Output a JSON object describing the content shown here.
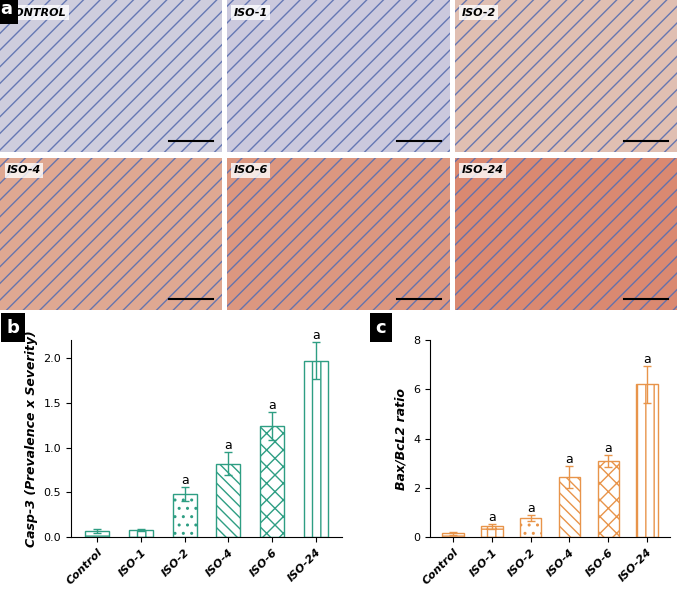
{
  "micrographs": {
    "panel": "a",
    "labels": [
      "CONTROL",
      "ISO-1",
      "ISO-2",
      "ISO-4",
      "ISO-6",
      "ISO-24"
    ]
  },
  "chart_data": [
    {
      "type": "bar",
      "annotations": [
        "b"
      ],
      "categories": [
        "Control",
        "ISO-1",
        "ISO-2",
        "ISO-4",
        "ISO-6",
        "ISO-24"
      ],
      "values": [
        0.07,
        0.08,
        0.48,
        0.82,
        1.24,
        1.97
      ],
      "errors": [
        0.02,
        0.01,
        0.08,
        0.13,
        0.16,
        0.21
      ],
      "significance": [
        null,
        null,
        "a",
        "a",
        "a",
        "a"
      ],
      "y_label": "Casp-3 (Prevalence x Severity)",
      "color": "#2e9e83",
      "ylim": [
        0,
        2.2
      ],
      "yticks": [
        {
          "value": 0.0,
          "label": "0.0"
        },
        {
          "value": 0.5,
          "label": "0.5"
        },
        {
          "value": 1.0,
          "label": "1.0"
        },
        {
          "value": 1.5,
          "label": "1.5"
        },
        {
          "value": 2.0,
          "label": "2.0"
        }
      ],
      "grid": false
    },
    {
      "type": "bar",
      "annotations": [
        "c"
      ],
      "categories": [
        "Control",
        "ISO-1",
        "ISO-2",
        "ISO-4",
        "ISO-6",
        "ISO-24"
      ],
      "values": [
        0.15,
        0.45,
        0.78,
        2.45,
        3.1,
        6.2
      ],
      "errors": [
        0.05,
        0.1,
        0.12,
        0.45,
        0.25,
        0.75
      ],
      "significance": [
        null,
        "a",
        "a",
        "a",
        "a",
        "a"
      ],
      "y_label": "Bax/BcL2 ratio",
      "color": "#e8944a",
      "ylim": [
        0,
        8
      ],
      "yticks": [
        0,
        2,
        4,
        6,
        8
      ],
      "grid": false
    }
  ]
}
